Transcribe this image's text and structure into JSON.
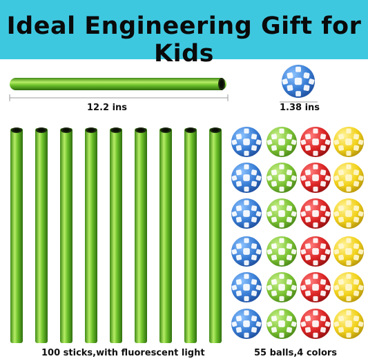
{
  "banner": {
    "title": "Ideal Engineering Gift for Kids"
  },
  "dimensions": {
    "stick_length": "12.2 ins",
    "ball_diameter": "1.38 ins"
  },
  "captions": {
    "sticks": "100 sticks,with fluorescent light",
    "balls": "55 balls,4 colors"
  },
  "colors": {
    "banner": "#3ec8e0",
    "stick": "#5fb02a",
    "ball_colors": [
      "#3a7fd6",
      "#7cc334",
      "#dc2525",
      "#f2d21c"
    ]
  },
  "icons": [
    "green-stick",
    "blue-ball",
    "green-ball",
    "red-ball",
    "yellow-ball"
  ]
}
